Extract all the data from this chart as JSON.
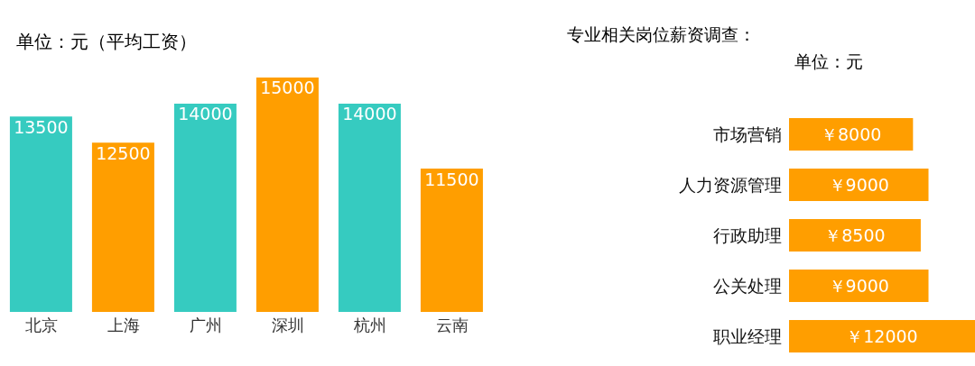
{
  "chart_data": [
    {
      "type": "bar",
      "title": "单位：元（平均工资）",
      "categories": [
        "北京",
        "上海",
        "广州",
        "深圳",
        "杭州",
        "云南"
      ],
      "values": [
        13500,
        12500,
        14000,
        15000,
        14000,
        11500
      ],
      "colors": [
        "#36cbc0",
        "#ff9e00",
        "#36cbc0",
        "#ff9e00",
        "#36cbc0",
        "#ff9e00"
      ],
      "ylim": [
        6000,
        15000
      ],
      "data_labels": true,
      "tick_labels": "x"
    },
    {
      "type": "bar",
      "orientation": "horizontal",
      "title": "专业相关岗位薪资调查：",
      "subtitle": "单位：元",
      "categories": [
        "市场营销",
        "人力资源管理",
        "行政助理",
        "公关处理",
        "职业经理"
      ],
      "values": [
        8000,
        9000,
        8500,
        9000,
        12000
      ],
      "color": "#ff9e00",
      "xlim": [
        0,
        12000
      ],
      "value_labels": [
        "￥8000",
        "￥9000",
        "￥8500",
        "￥9000",
        "￥12000"
      ],
      "tick_labels": "y"
    }
  ]
}
